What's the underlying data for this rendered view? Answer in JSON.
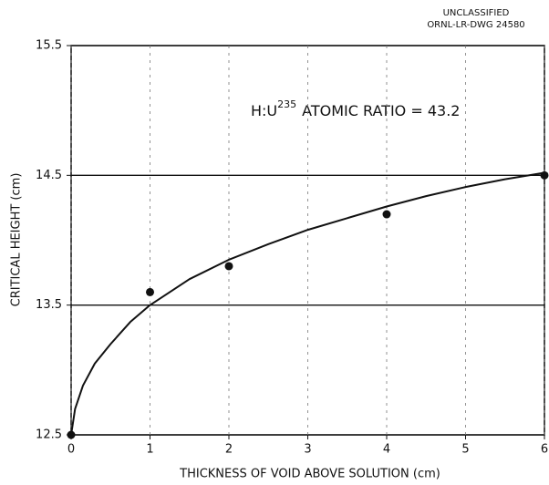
{
  "chart_data": {
    "type": "scatter",
    "header": [
      "UNCLASSIFIED",
      "ORNL-LR-DWG 24580"
    ],
    "annotation": {
      "text": "H:U",
      "superscript": "235",
      "suffix": "ATOMIC RATIO = 43.2"
    },
    "xlabel": "THICKNESS OF VOID ABOVE SOLUTION (cm)",
    "ylabel": "CRITICAL HEIGHT (cm)",
    "xlim": [
      0,
      6
    ],
    "xticks": [
      0,
      1,
      2,
      3,
      4,
      5,
      6
    ],
    "ylim": [
      12.5,
      15.5
    ],
    "yticks": [
      12.5,
      13.5,
      14.5,
      15.5
    ],
    "grid": true,
    "color": "#111111",
    "series": [
      {
        "mode": "markers",
        "x": [
          0,
          1,
          2,
          4,
          6
        ],
        "values": [
          12.5,
          13.6,
          13.8,
          14.2,
          14.5
        ]
      },
      {
        "mode": "line",
        "x": [
          0,
          0.05,
          0.15,
          0.3,
          0.5,
          0.75,
          1,
          1.5,
          2,
          2.5,
          3,
          3.5,
          4,
          4.5,
          5,
          5.5,
          6
        ],
        "values": [
          12.5,
          12.7,
          12.88,
          13.05,
          13.2,
          13.37,
          13.5,
          13.7,
          13.85,
          13.97,
          14.08,
          14.17,
          14.26,
          14.34,
          14.41,
          14.47,
          14.52
        ]
      }
    ]
  }
}
